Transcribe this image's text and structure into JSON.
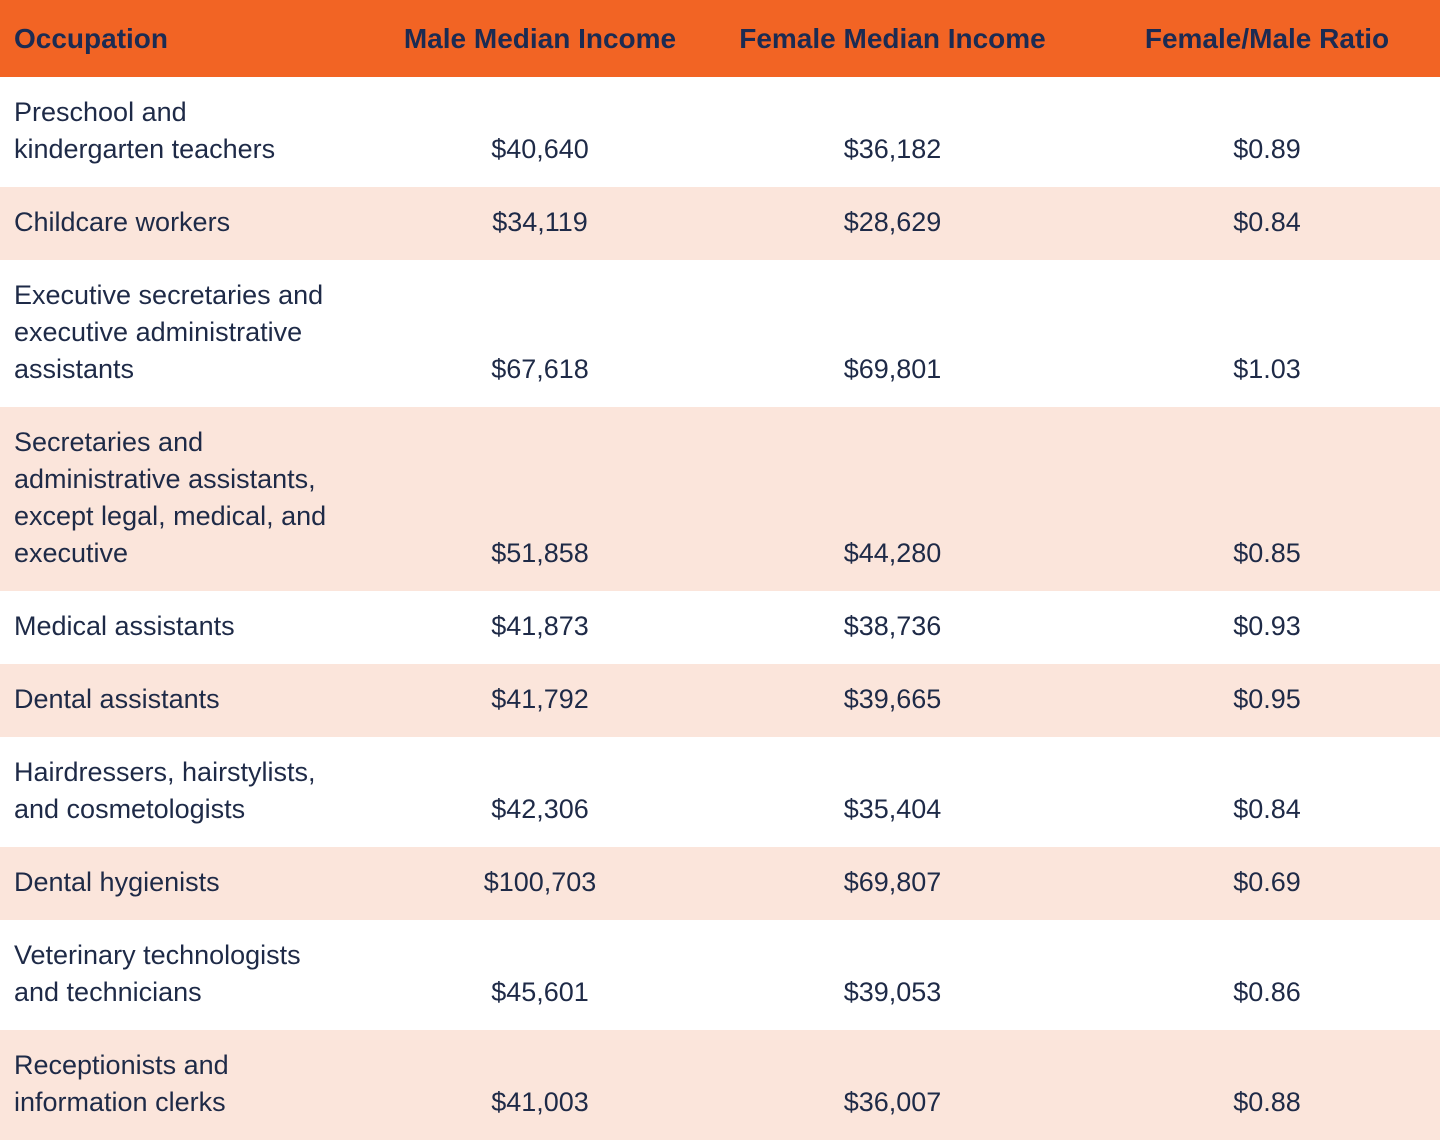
{
  "table": {
    "columns": [
      "Occupation",
      "Male Median Income",
      "Female Median Income",
      "Female/Male Ratio"
    ],
    "rows": [
      {
        "occupation_lines": [
          "Preschool and",
          "kindergarten teachers"
        ],
        "male": "$40,640",
        "female": "$36,182",
        "ratio": "$0.89"
      },
      {
        "occupation_lines": [
          "Childcare workers"
        ],
        "male": "$34,119",
        "female": "$28,629",
        "ratio": "$0.84"
      },
      {
        "occupation_lines": [
          "Executive secretaries and",
          "executive administrative",
          "assistants"
        ],
        "male": "$67,618",
        "female": "$69,801",
        "ratio": "$1.03"
      },
      {
        "occupation_lines": [
          "Secretaries and",
          "administrative assistants,",
          "except legal, medical, and",
          "executive"
        ],
        "male": "$51,858",
        "female": "$44,280",
        "ratio": "$0.85"
      },
      {
        "occupation_lines": [
          "Medical assistants"
        ],
        "male": "$41,873",
        "female": "$38,736",
        "ratio": "$0.93"
      },
      {
        "occupation_lines": [
          "Dental assistants"
        ],
        "male": "$41,792",
        "female": "$39,665",
        "ratio": "$0.95"
      },
      {
        "occupation_lines": [
          "Hairdressers, hairstylists,",
          "and cosmetologists"
        ],
        "male": "$42,306",
        "female": "$35,404",
        "ratio": "$0.84"
      },
      {
        "occupation_lines": [
          "Dental hygienists"
        ],
        "male": "$100,703",
        "female": "$69,807",
        "ratio": "$0.69"
      },
      {
        "occupation_lines": [
          "Veterinary technologists",
          "and technicians"
        ],
        "male": "$45,601",
        "female": "$39,053",
        "ratio": "$0.86"
      },
      {
        "occupation_lines": [
          "Receptionists and",
          "information clerks"
        ],
        "male": "$41,003",
        "female": "$36,007",
        "ratio": "$0.88"
      }
    ]
  },
  "colors": {
    "header_bg": "#F26424",
    "header_text": "#1C2B52",
    "row_bg": "#FFFFFF",
    "row_alt_bg": "#FBE5DB",
    "body_text": "#1E2A47"
  },
  "chart_data": {
    "type": "table",
    "columns": [
      "Occupation",
      "Male Median Income",
      "Female Median Income",
      "Female/Male Ratio"
    ],
    "rows": [
      [
        "Preschool and kindergarten teachers",
        "$40,640",
        "$36,182",
        "$0.89"
      ],
      [
        "Childcare workers",
        "$34,119",
        "$28,629",
        "$0.84"
      ],
      [
        "Executive secretaries and executive administrative assistants",
        "$67,618",
        "$69,801",
        "$1.03"
      ],
      [
        "Secretaries and administrative assistants, except legal, medical, and executive",
        "$51,858",
        "$44,280",
        "$0.85"
      ],
      [
        "Medical assistants",
        "$41,873",
        "$38,736",
        "$0.93"
      ],
      [
        "Dental assistants",
        "$41,792",
        "$39,665",
        "$0.95"
      ],
      [
        "Hairdressers, hairstylists, and cosmetologists",
        "$42,306",
        "$35,404",
        "$0.84"
      ],
      [
        "Dental hygienists",
        "$100,703",
        "$69,807",
        "$0.69"
      ],
      [
        "Veterinary technologists and technicians",
        "$45,601",
        "$39,053",
        "$0.86"
      ],
      [
        "Receptionists and information clerks",
        "$41,003",
        "$36,007",
        "$0.88"
      ]
    ],
    "layout_hints": {
      "header_fill": "orange",
      "zebra_striping": "white / light peach alternating",
      "numeric_columns_alignment": "center",
      "occupation_column_alignment": "left"
    }
  }
}
